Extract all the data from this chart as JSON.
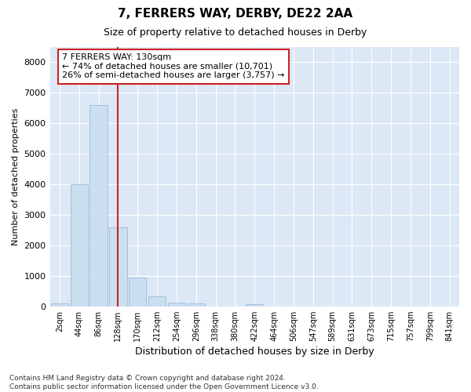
{
  "title": "7, FERRERS WAY, DERBY, DE22 2AA",
  "subtitle": "Size of property relative to detached houses in Derby",
  "xlabel": "Distribution of detached houses by size in Derby",
  "ylabel": "Number of detached properties",
  "bar_color": "#ccdff0",
  "bar_edge_color": "#99bbd8",
  "annotation_line_color": "#cc2222",
  "annotation_box_color": "#cc2222",
  "annotation_text": "7 FERRERS WAY: 130sqm\n← 74% of detached houses are smaller (10,701)\n26% of semi-detached houses are larger (3,757) →",
  "categories": [
    "2sqm",
    "44sqm",
    "86sqm",
    "128sqm",
    "170sqm",
    "212sqm",
    "254sqm",
    "296sqm",
    "338sqm",
    "380sqm",
    "422sqm",
    "464sqm",
    "506sqm",
    "547sqm",
    "589sqm",
    "631sqm",
    "673sqm",
    "715sqm",
    "757sqm",
    "799sqm",
    "841sqm"
  ],
  "values": [
    100,
    4000,
    6600,
    2600,
    950,
    330,
    130,
    90,
    0,
    0,
    60,
    0,
    0,
    0,
    0,
    0,
    0,
    0,
    0,
    0,
    0
  ],
  "ylim": [
    0,
    8500
  ],
  "yticks": [
    0,
    1000,
    2000,
    3000,
    4000,
    5000,
    6000,
    7000,
    8000
  ],
  "footnote": "Contains HM Land Registry data © Crown copyright and database right 2024.\nContains public sector information licensed under the Open Government Licence v3.0.",
  "fig_bg_color": "#ffffff",
  "plot_bg_color": "#dce8f5",
  "grid_color": "#ffffff",
  "annotation_line_index": 3
}
